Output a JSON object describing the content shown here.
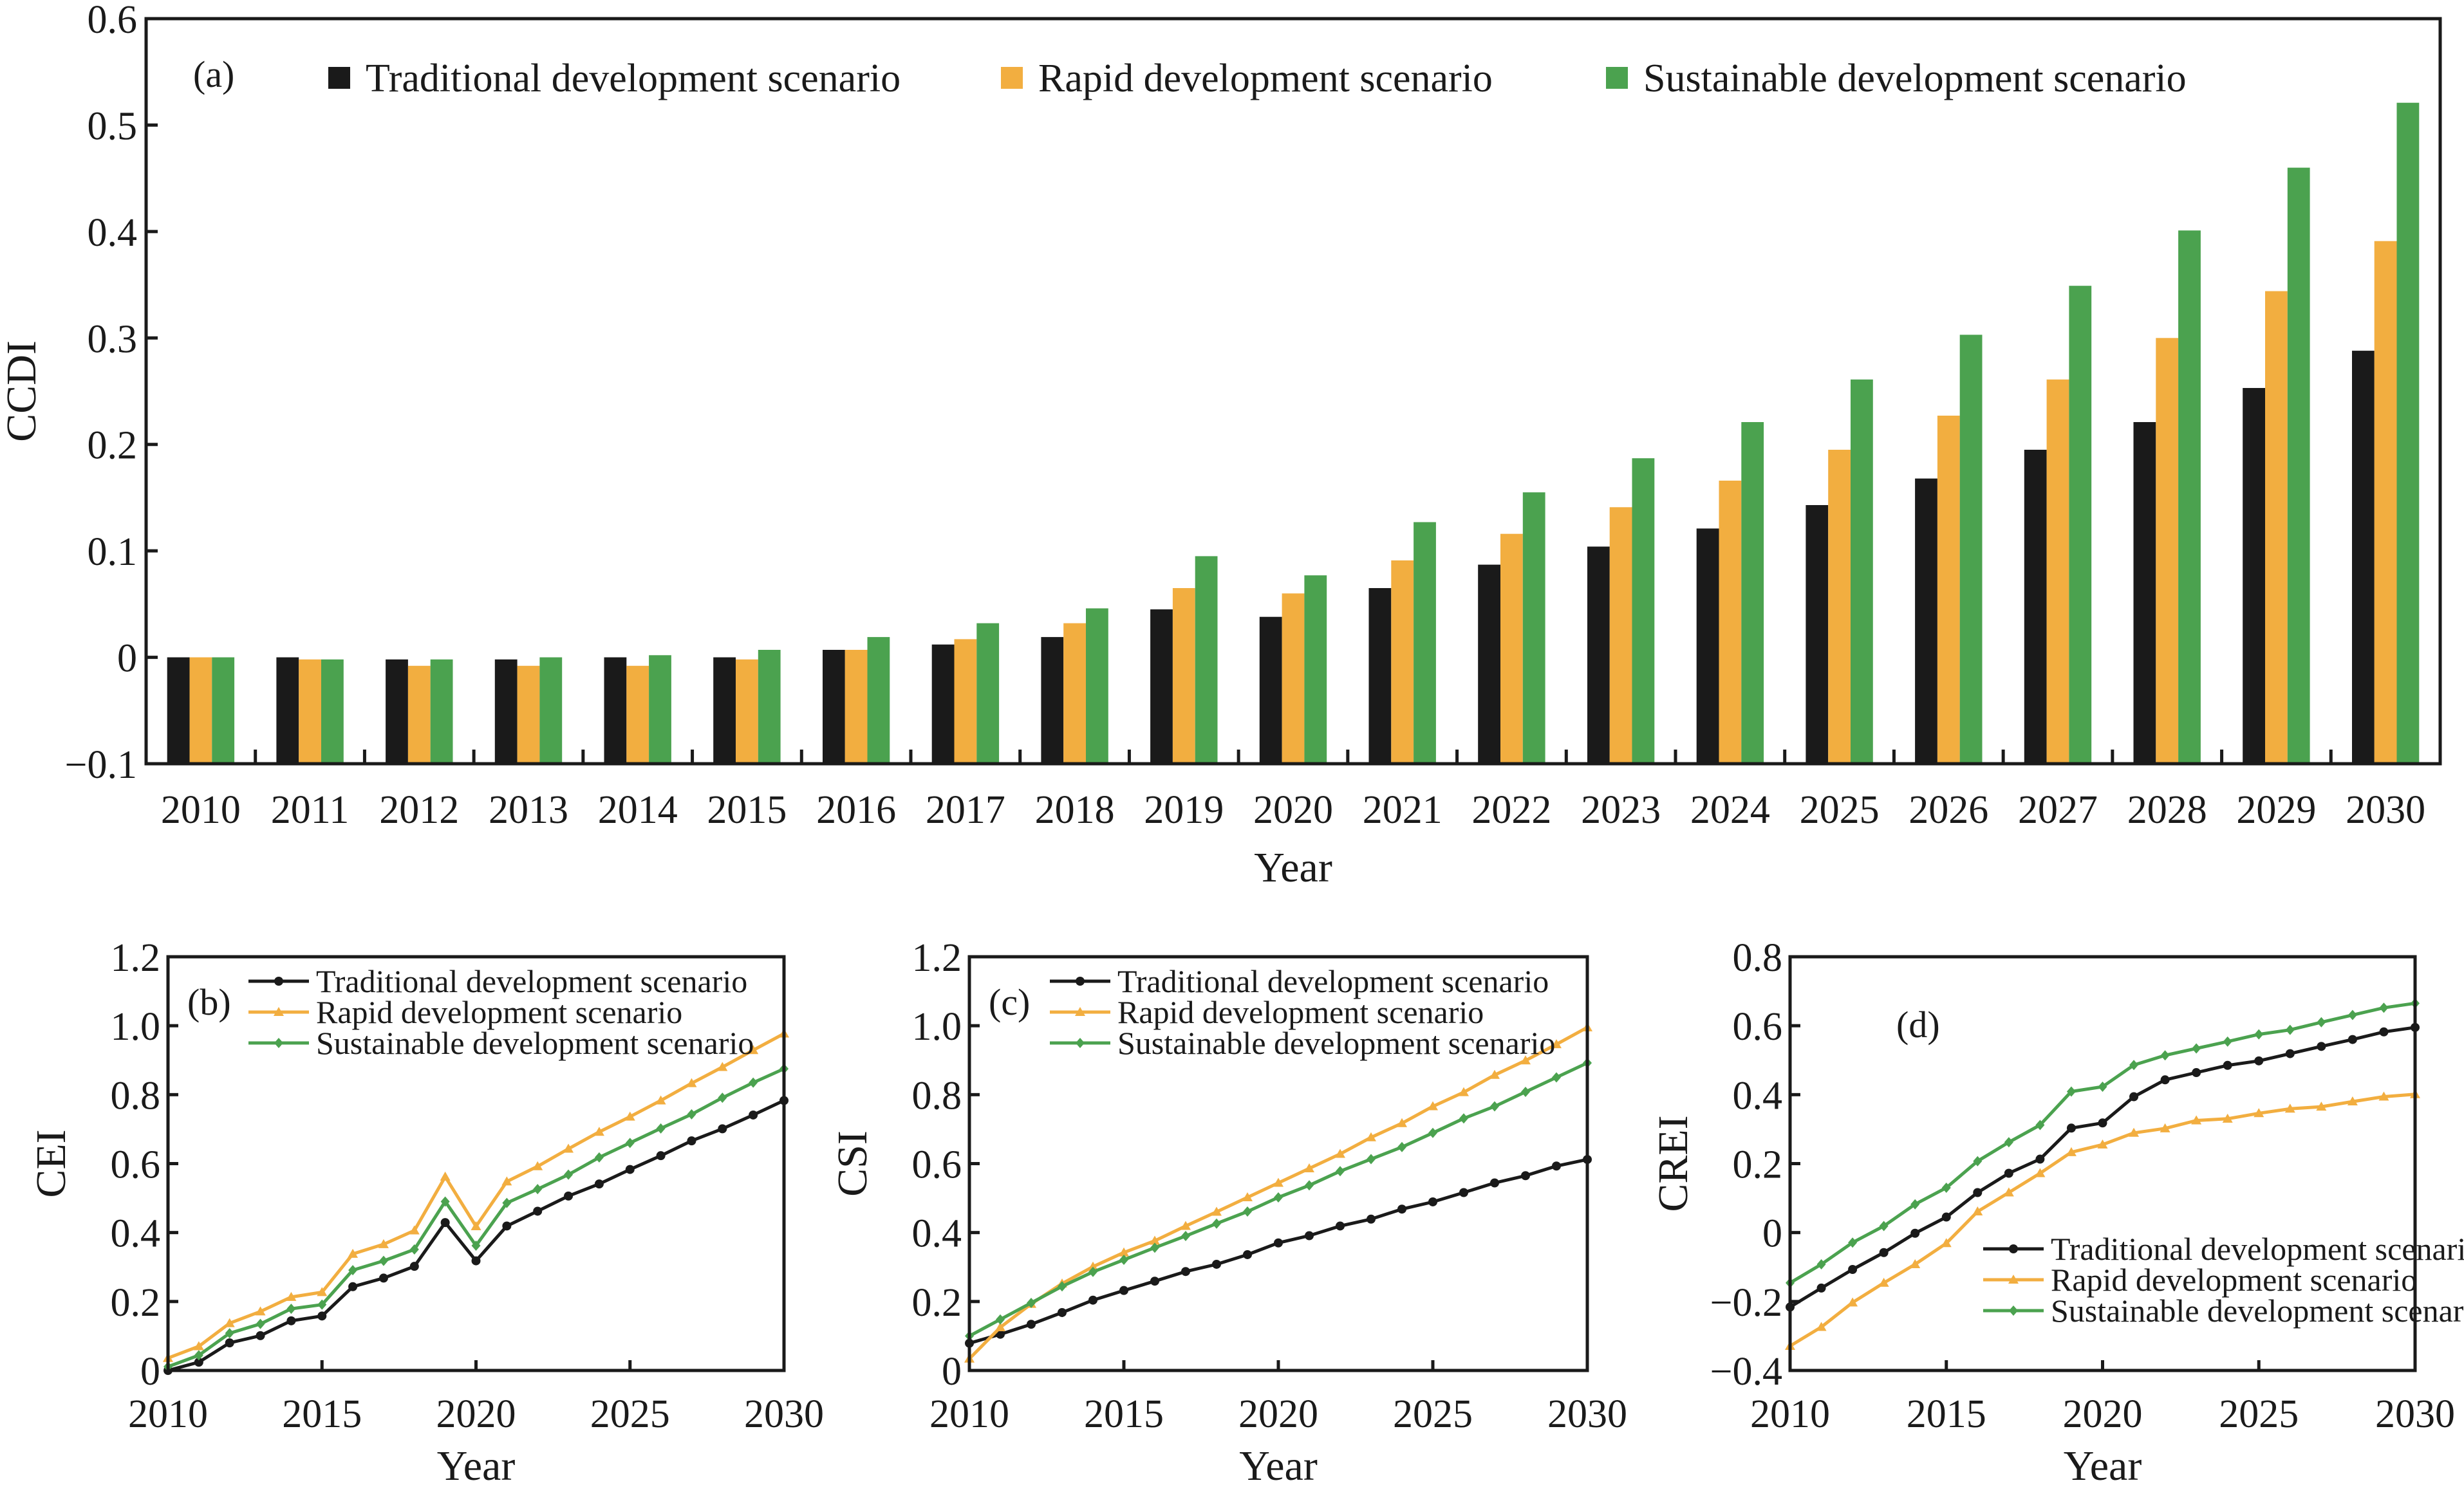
{
  "colors": {
    "traditional": "#1a1a1a",
    "rapid": "#f2ae40",
    "sustainable": "#4ba24f",
    "axis": "#1a1a1a"
  },
  "chart_data": [
    {
      "id": "a",
      "panel_label": "(a)",
      "type": "bar",
      "title": "",
      "xlabel": "Year",
      "ylabel": "CCDI",
      "ylim": [
        -0.1,
        0.6
      ],
      "yticks": [
        -0.1,
        0,
        0.1,
        0.2,
        0.3,
        0.4,
        0.5,
        0.6
      ],
      "ytick_labels": [
        "−0.1",
        "0",
        "0.1",
        "0.2",
        "0.3",
        "0.4",
        "0.5",
        "0.6"
      ],
      "grid": false,
      "legend_position": "top",
      "categories": [
        "2010",
        "2011",
        "2012",
        "2013",
        "2014",
        "2015",
        "2016",
        "2017",
        "2018",
        "2019",
        "2020",
        "2021",
        "2022",
        "2023",
        "2024",
        "2025",
        "2026",
        "2027",
        "2028",
        "2029",
        "2030"
      ],
      "series": [
        {
          "name": "Traditional development scenario",
          "key": "traditional",
          "values": [
            0.0,
            0.0,
            -0.002,
            -0.002,
            0.0,
            0.0,
            0.007,
            0.012,
            0.019,
            0.045,
            0.038,
            0.065,
            0.087,
            0.104,
            0.121,
            0.143,
            0.168,
            0.195,
            0.221,
            0.253,
            0.288
          ]
        },
        {
          "name": "Rapid development scenario",
          "key": "rapid",
          "values": [
            0.0,
            -0.002,
            -0.008,
            -0.008,
            -0.008,
            -0.002,
            0.007,
            0.017,
            0.032,
            0.065,
            0.06,
            0.091,
            0.116,
            0.141,
            0.166,
            0.195,
            0.227,
            0.261,
            0.3,
            0.344,
            0.391
          ]
        },
        {
          "name": "Sustainable development scenario",
          "key": "sustainable",
          "values": [
            0.0,
            -0.002,
            -0.002,
            0.0,
            0.002,
            0.007,
            0.019,
            0.032,
            0.046,
            0.095,
            0.077,
            0.127,
            0.155,
            0.187,
            0.221,
            0.261,
            0.303,
            0.349,
            0.401,
            0.46,
            0.521
          ]
        }
      ]
    },
    {
      "id": "b",
      "panel_label": "(b)",
      "type": "line",
      "xlabel": "Year",
      "ylabel": "CEI",
      "xlim": [
        2010,
        2030
      ],
      "ylim": [
        0,
        1.2
      ],
      "xticks": [
        2010,
        2015,
        2020,
        2025,
        2030
      ],
      "yticks": [
        0,
        0.2,
        0.4,
        0.6,
        0.8,
        1.0,
        1.2
      ],
      "ytick_labels": [
        "0",
        "0.2",
        "0.4",
        "0.6",
        "0.8",
        "1.0",
        "1.2"
      ],
      "grid": false,
      "legend_position": "top-left",
      "x": [
        2010,
        2011,
        2012,
        2013,
        2014,
        2015,
        2016,
        2017,
        2018,
        2019,
        2020,
        2021,
        2022,
        2023,
        2024,
        2025,
        2026,
        2027,
        2028,
        2029,
        2030
      ],
      "series": [
        {
          "name": "Traditional development scenario",
          "key": "traditional",
          "marker": "circle",
          "values": [
            0.0,
            0.024,
            0.08,
            0.101,
            0.144,
            0.158,
            0.243,
            0.268,
            0.302,
            0.429,
            0.318,
            0.419,
            0.462,
            0.506,
            0.541,
            0.583,
            0.623,
            0.666,
            0.701,
            0.741,
            0.783
          ]
        },
        {
          "name": "Rapid development scenario",
          "key": "rapid",
          "marker": "triangle",
          "values": [
            0.036,
            0.07,
            0.137,
            0.171,
            0.213,
            0.227,
            0.338,
            0.366,
            0.406,
            0.562,
            0.418,
            0.548,
            0.592,
            0.643,
            0.692,
            0.736,
            0.783,
            0.833,
            0.88,
            0.929,
            0.977
          ]
        },
        {
          "name": "Sustainable development scenario",
          "key": "sustainable",
          "marker": "diamond",
          "values": [
            0.011,
            0.044,
            0.108,
            0.135,
            0.179,
            0.191,
            0.291,
            0.318,
            0.351,
            0.49,
            0.362,
            0.486,
            0.526,
            0.568,
            0.618,
            0.66,
            0.702,
            0.743,
            0.791,
            0.835,
            0.875
          ]
        }
      ]
    },
    {
      "id": "c",
      "panel_label": "(c)",
      "type": "line",
      "xlabel": "Year",
      "ylabel": "CSI",
      "xlim": [
        2010,
        2030
      ],
      "ylim": [
        0,
        1.2
      ],
      "xticks": [
        2010,
        2015,
        2020,
        2025,
        2030
      ],
      "yticks": [
        0,
        0.2,
        0.4,
        0.6,
        0.8,
        1.0,
        1.2
      ],
      "ytick_labels": [
        "0",
        "0.2",
        "0.4",
        "0.6",
        "0.8",
        "1.0",
        "1.2"
      ],
      "grid": false,
      "legend_position": "top-left",
      "x": [
        2010,
        2011,
        2012,
        2013,
        2014,
        2015,
        2016,
        2017,
        2018,
        2019,
        2020,
        2021,
        2022,
        2023,
        2024,
        2025,
        2026,
        2027,
        2028,
        2029,
        2030
      ],
      "series": [
        {
          "name": "Traditional development scenario",
          "key": "traditional",
          "marker": "circle",
          "values": [
            0.079,
            0.105,
            0.134,
            0.168,
            0.204,
            0.232,
            0.259,
            0.287,
            0.308,
            0.336,
            0.37,
            0.391,
            0.419,
            0.439,
            0.468,
            0.489,
            0.516,
            0.544,
            0.565,
            0.593,
            0.612
          ]
        },
        {
          "name": "Rapid development scenario",
          "key": "rapid",
          "marker": "triangle",
          "values": [
            0.034,
            0.125,
            0.193,
            0.252,
            0.301,
            0.342,
            0.376,
            0.419,
            0.46,
            0.502,
            0.544,
            0.586,
            0.628,
            0.676,
            0.717,
            0.766,
            0.807,
            0.857,
            0.899,
            0.946,
            0.995
          ]
        },
        {
          "name": "Sustainable development scenario",
          "key": "sustainable",
          "marker": "diamond",
          "values": [
            0.1,
            0.148,
            0.196,
            0.244,
            0.286,
            0.321,
            0.356,
            0.39,
            0.426,
            0.461,
            0.502,
            0.537,
            0.578,
            0.613,
            0.648,
            0.689,
            0.731,
            0.766,
            0.808,
            0.85,
            0.892
          ]
        }
      ]
    },
    {
      "id": "d",
      "panel_label": "(d)",
      "type": "line",
      "xlabel": "Year",
      "ylabel": "CREI",
      "xlim": [
        2010,
        2030
      ],
      "ylim": [
        -0.4,
        0.8
      ],
      "xticks": [
        2010,
        2015,
        2020,
        2025,
        2030
      ],
      "yticks": [
        -0.4,
        -0.2,
        0,
        0.2,
        0.4,
        0.6,
        0.8
      ],
      "ytick_labels": [
        "−0.4",
        "−0.2",
        "0",
        "0.2",
        "0.4",
        "0.6",
        "0.8"
      ],
      "grid": false,
      "legend_position": "bottom-right",
      "x": [
        2010,
        2011,
        2012,
        2013,
        2014,
        2015,
        2016,
        2017,
        2018,
        2019,
        2020,
        2021,
        2022,
        2023,
        2024,
        2025,
        2026,
        2027,
        2028,
        2029,
        2030
      ],
      "series": [
        {
          "name": "Traditional development scenario",
          "key": "traditional",
          "marker": "circle",
          "values": [
            -0.216,
            -0.161,
            -0.107,
            -0.058,
            -0.002,
            0.045,
            0.116,
            0.172,
            0.213,
            0.303,
            0.318,
            0.394,
            0.443,
            0.464,
            0.485,
            0.498,
            0.519,
            0.54,
            0.56,
            0.582,
            0.595
          ]
        },
        {
          "name": "Rapid development scenario",
          "key": "rapid",
          "marker": "triangle",
          "values": [
            -0.329,
            -0.274,
            -0.203,
            -0.146,
            -0.092,
            -0.031,
            0.061,
            0.116,
            0.172,
            0.233,
            0.255,
            0.289,
            0.302,
            0.325,
            0.33,
            0.346,
            0.359,
            0.365,
            0.38,
            0.394,
            0.401
          ]
        },
        {
          "name": "Sustainable development scenario",
          "key": "sustainable",
          "marker": "diamond",
          "values": [
            -0.146,
            -0.092,
            -0.029,
            0.019,
            0.082,
            0.13,
            0.207,
            0.262,
            0.312,
            0.409,
            0.423,
            0.486,
            0.514,
            0.534,
            0.554,
            0.575,
            0.588,
            0.61,
            0.631,
            0.652,
            0.665
          ]
        }
      ]
    }
  ]
}
